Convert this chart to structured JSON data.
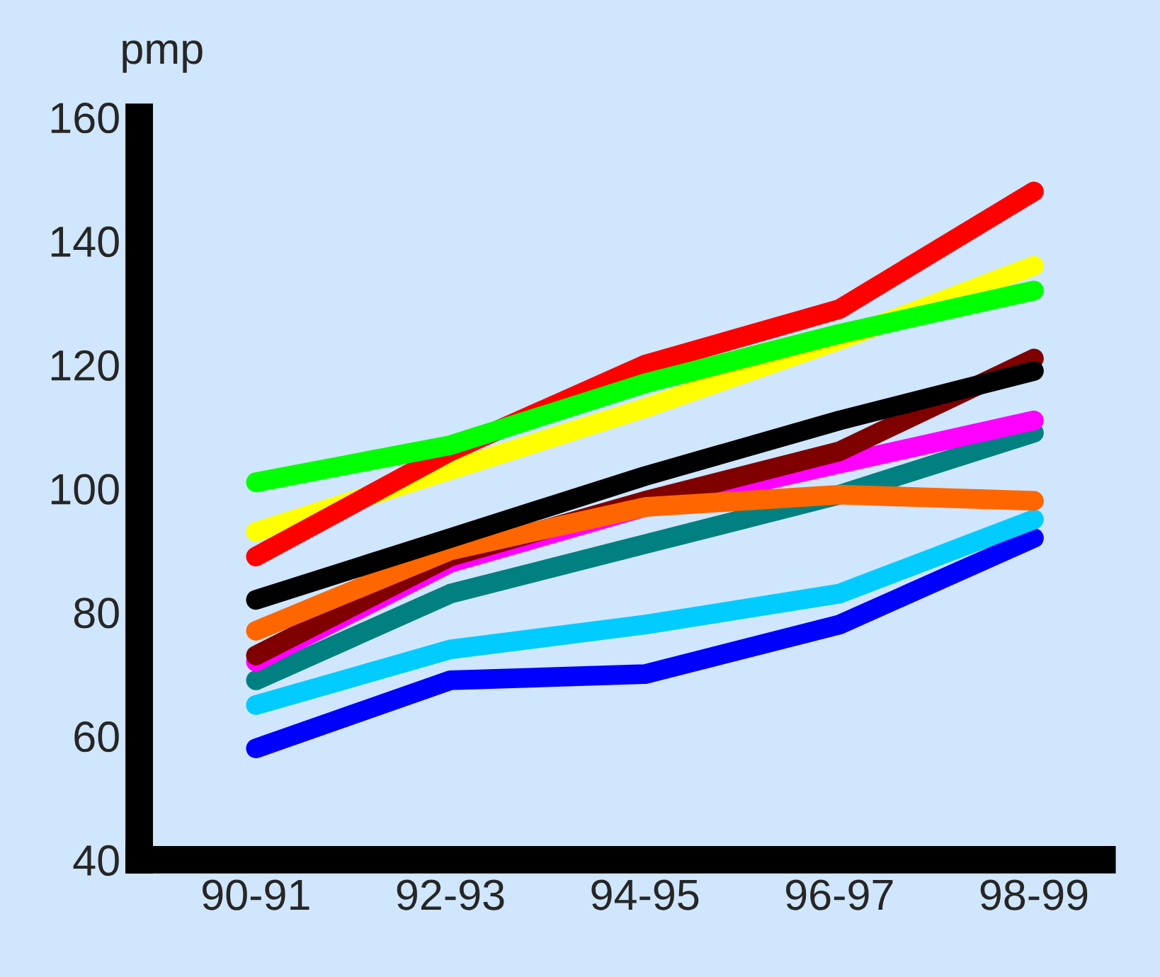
{
  "chart_data": {
    "type": "line",
    "ylabel": "pmp",
    "categories": [
      "90-91",
      "92-93",
      "94-95",
      "96-97",
      "98-99"
    ],
    "ylim": [
      40,
      160
    ],
    "yticks": [
      40,
      60,
      80,
      100,
      120,
      140,
      160
    ],
    "grid": false,
    "legend": false,
    "marker": "none",
    "line_style": "solid",
    "series": [
      {
        "color": "#0000ff",
        "values": [
          58,
          69,
          70,
          78,
          92
        ]
      },
      {
        "color": "#00ccff",
        "values": [
          65,
          74,
          78,
          83,
          95
        ]
      },
      {
        "color": "#008080",
        "values": [
          69,
          83,
          91,
          99,
          109
        ]
      },
      {
        "color": "#ff00ff",
        "values": [
          72,
          88,
          97,
          104,
          111
        ]
      },
      {
        "color": "#800000",
        "values": [
          73,
          89,
          98,
          106,
          121
        ]
      },
      {
        "color": "#ff6600",
        "values": [
          77,
          90,
          97,
          99,
          98
        ]
      },
      {
        "color": "#000000",
        "values": [
          82,
          92,
          102,
          111,
          119
        ]
      },
      {
        "color": "#ffff00",
        "values": [
          93,
          103,
          113,
          124,
          136
        ]
      },
      {
        "color": "#ff0000",
        "values": [
          89,
          106,
          120,
          129,
          148
        ]
      },
      {
        "color": "#00ff00",
        "values": [
          101,
          107,
          117,
          125,
          132
        ]
      }
    ]
  }
}
